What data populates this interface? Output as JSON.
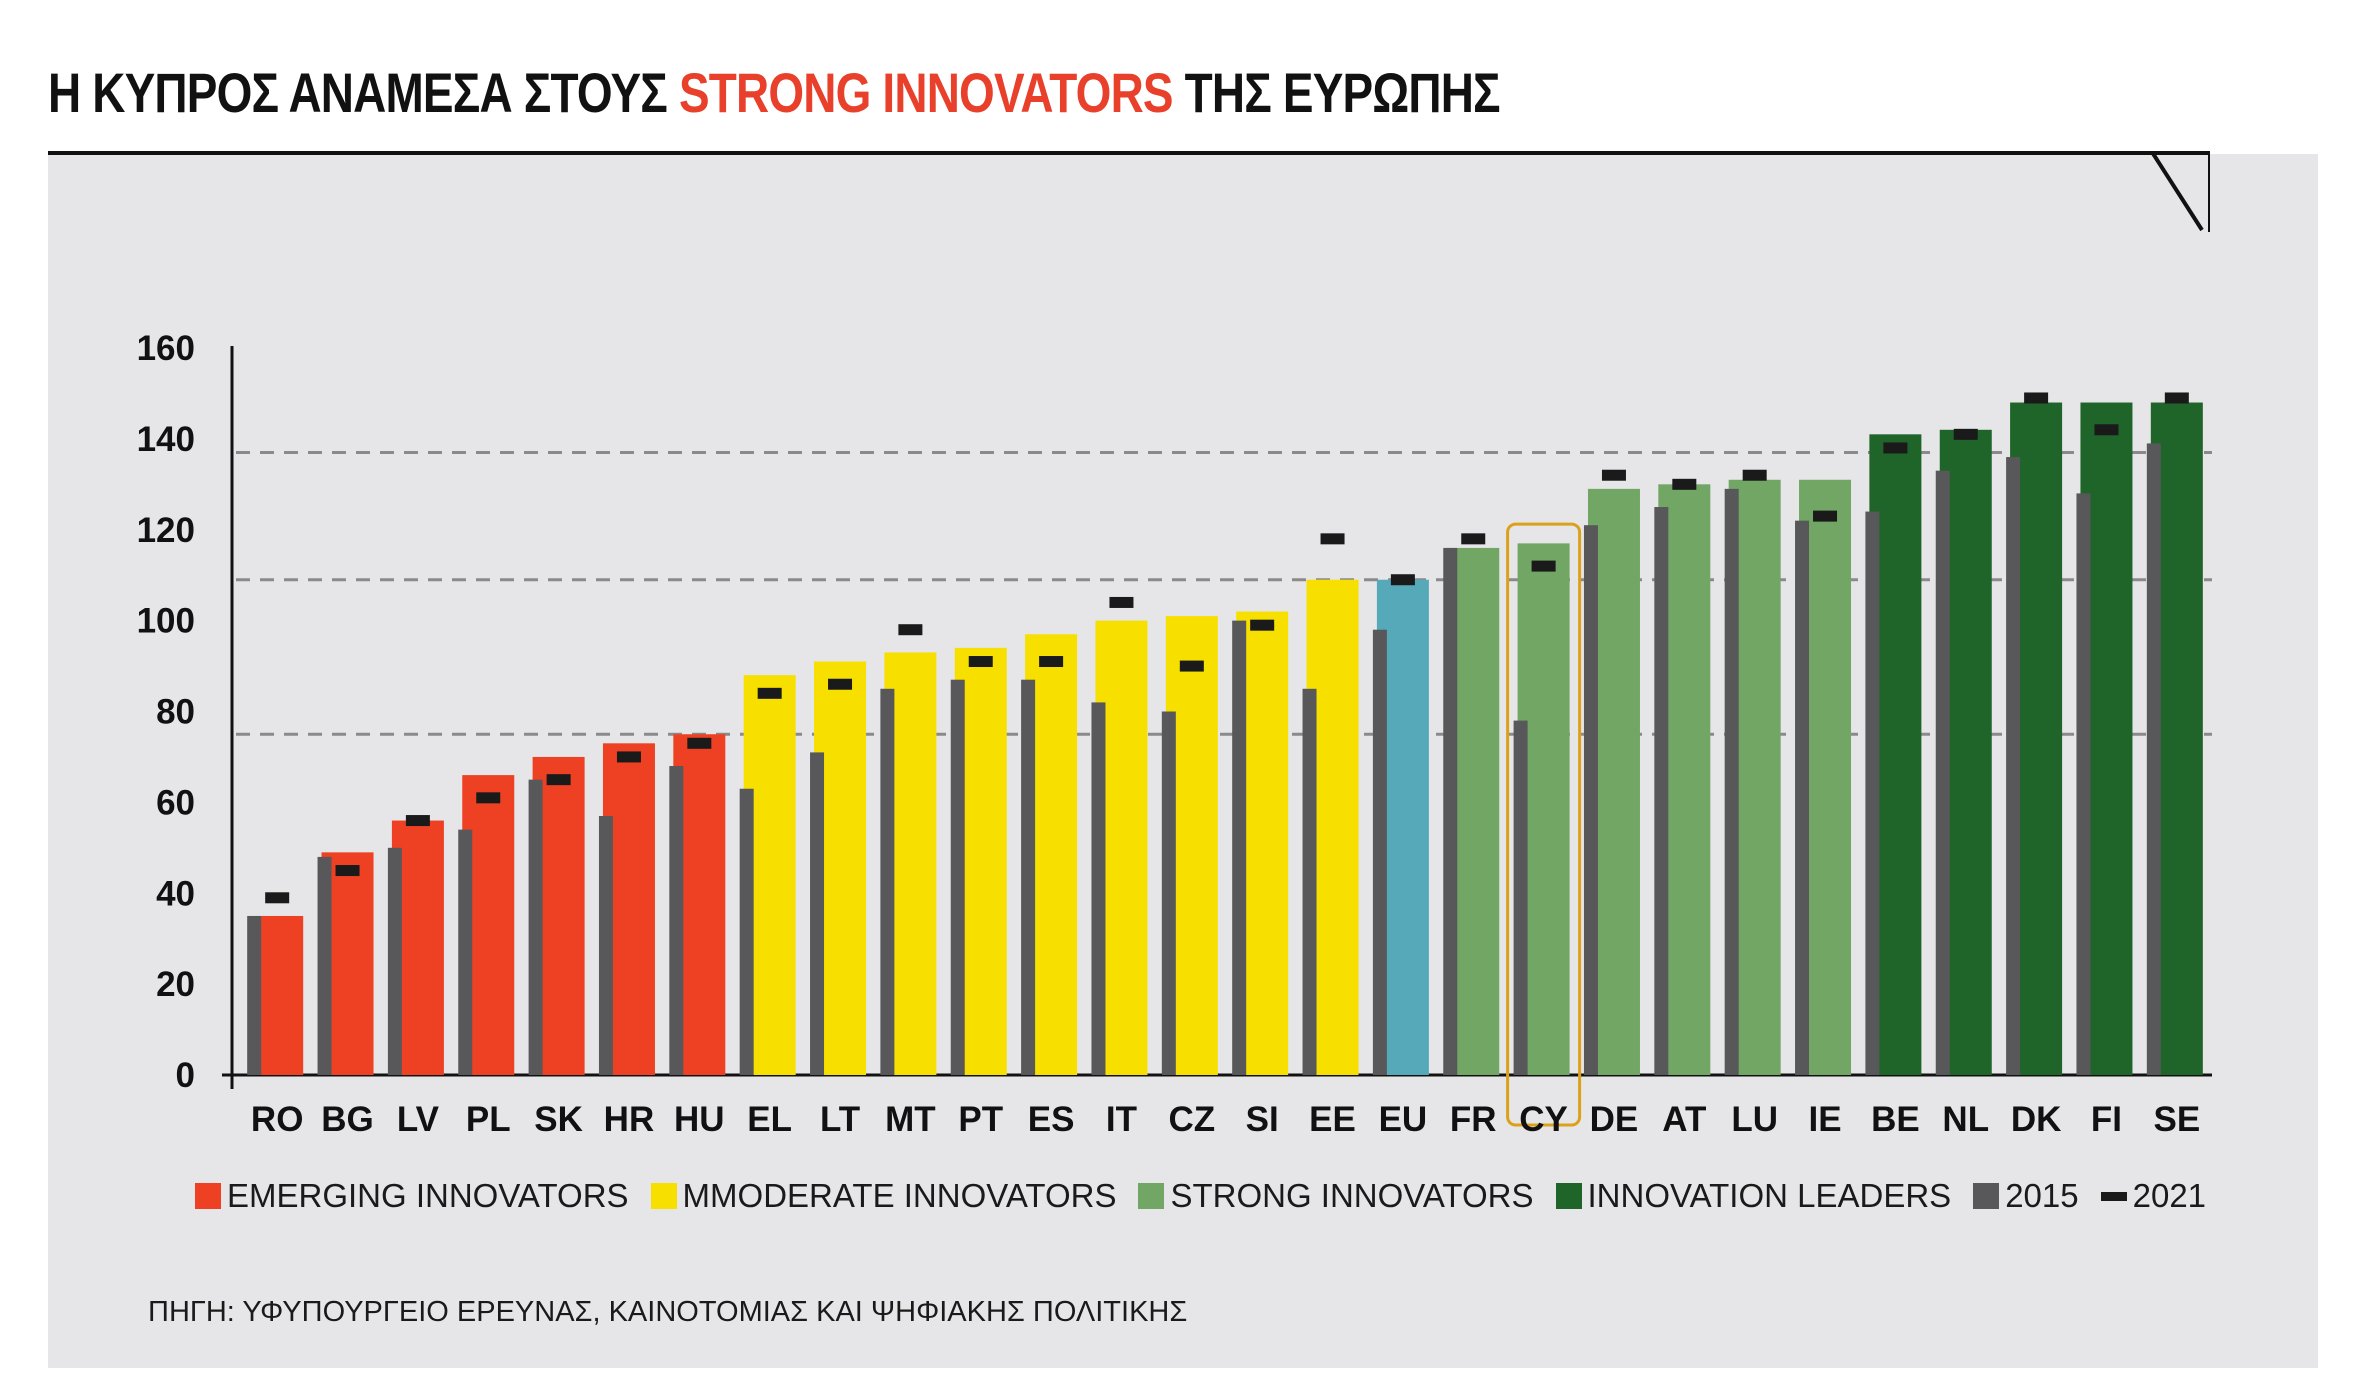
{
  "title": {
    "part1": "Η ΚΥΠΡΟΣ ΑΝΑΜΕΣΑ ΣΤΟΥΣ ",
    "highlight": "STRONG INNOVATORS",
    "part2": " ΤΗΣ ΕΥΡΩΠΗΣ"
  },
  "legend": {
    "emerging": "EMERGING INNOVATORS",
    "moderate": "MMODERATE INNOVATORS",
    "strong": "STRONG INNOVATORS",
    "leaders": "INNOVATION LEADERS",
    "y2015": "2015",
    "y2021": "2021"
  },
  "source": "ΠΗΓΗ: ΥΦΥΠΟΥΡΓΕΙΟ ΕΡΕΥΝΑΣ, ΚΑΙΝΟΤΟΜΙΑΣ ΚΑΙ ΨΗΦΙΑΚΗΣ ΠΟΛΙΤΙΚΗΣ",
  "colors": {
    "emerging": "#ee4023",
    "moderate": "#f7e000",
    "eu": "#55a9b9",
    "strong": "#72a665",
    "leaders": "#1f6428",
    "bar2015": "#58585a",
    "mark2021": "#1a1a1a",
    "highlight": "#e8402a",
    "cy_outline": "#dba11b"
  },
  "chart_data": {
    "type": "bar",
    "ylim": [
      0,
      160
    ],
    "yticks": [
      0,
      20,
      40,
      60,
      80,
      100,
      120,
      140,
      160
    ],
    "reference_lines": [
      75,
      109,
      137
    ],
    "highlighted_category": "CY",
    "categories": [
      "RO",
      "BG",
      "LV",
      "PL",
      "SK",
      "HR",
      "HU",
      "EL",
      "LT",
      "MT",
      "PT",
      "ES",
      "IT",
      "CZ",
      "SI",
      "EE",
      "EU",
      "FR",
      "CY",
      "DE",
      "AT",
      "LU",
      "IE",
      "BE",
      "NL",
      "DK",
      "FI",
      "SE"
    ],
    "groups": [
      "emerging",
      "emerging",
      "emerging",
      "emerging",
      "emerging",
      "emerging",
      "emerging",
      "moderate",
      "moderate",
      "moderate",
      "moderate",
      "moderate",
      "moderate",
      "moderate",
      "moderate",
      "moderate",
      "eu",
      "strong",
      "strong",
      "strong",
      "strong",
      "strong",
      "strong",
      "leaders",
      "leaders",
      "leaders",
      "leaders",
      "leaders"
    ],
    "series": [
      {
        "name": "",
        "values": [
          35,
          49,
          56,
          66,
          70,
          73,
          75,
          88,
          91,
          93,
          94,
          97,
          100,
          101,
          102,
          109,
          109,
          116,
          117,
          129,
          130,
          131,
          131,
          141,
          142,
          148,
          148,
          148
        ]
      },
      {
        "name": "2015",
        "values": [
          35,
          48,
          50,
          54,
          65,
          57,
          68,
          63,
          71,
          85,
          87,
          87,
          82,
          80,
          100,
          85,
          98,
          116,
          78,
          121,
          125,
          129,
          122,
          124,
          133,
          136,
          128,
          139
        ]
      },
      {
        "name": "2021",
        "values": [
          39,
          45,
          56,
          61,
          65,
          70,
          73,
          84,
          86,
          98,
          91,
          91,
          104,
          90,
          99,
          118,
          109,
          118,
          112,
          132,
          130,
          132,
          123,
          138,
          141,
          149,
          142,
          149
        ]
      }
    ]
  }
}
